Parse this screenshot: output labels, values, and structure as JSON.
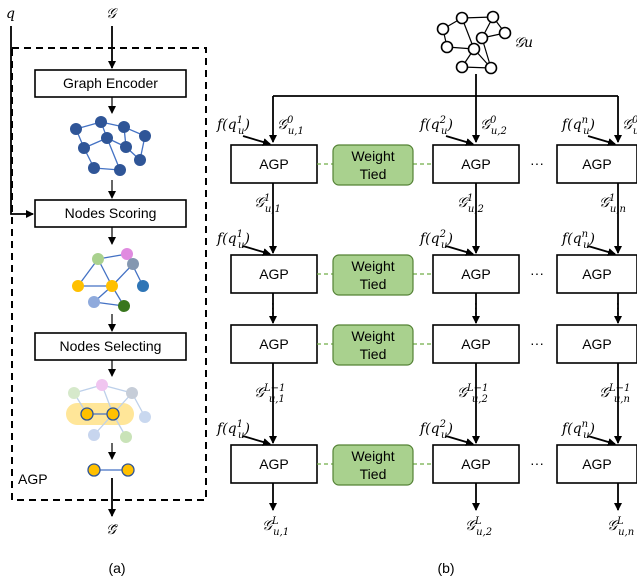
{
  "panel_a": {
    "q_label": "q",
    "graph_label": "𝒢",
    "encoder_label": "Graph Encoder",
    "scoring_label": "Nodes Scoring",
    "selecting_label": "Nodes Selecting",
    "agp_label": "AGP",
    "output_label": "𝒢̃",
    "caption": "(a)"
  },
  "panel_b": {
    "top_graph_label": "𝒢u",
    "agp_box_label": "AGP",
    "tied_line1": "Weight",
    "tied_line2": "Tied",
    "ellipsis_h": "···",
    "ellipsis_v": "⋮",
    "caption": "(b)",
    "inputs": [
      {
        "f": "f(q",
        "sup": "1",
        "u": "u",
        "g0": "𝒢",
        "g0sup": "0",
        "g0sub": "u,1"
      },
      {
        "f": "f(q",
        "sup": "2",
        "u": "u",
        "g0": "𝒢",
        "g0sup": "0",
        "g0sub": "u,2"
      },
      {
        "f": "f(q",
        "sup": "n",
        "u": "u",
        "g0": "𝒢",
        "g0sup": "0",
        "g0sub": "u,n"
      }
    ],
    "layer1_out": [
      {
        "sup": "1",
        "sub": "u,1"
      },
      {
        "sup": "1",
        "sub": "u,2"
      },
      {
        "sup": "1",
        "sub": "u,n"
      }
    ],
    "layerLm1_out": [
      {
        "sup": "L−1",
        "sub": "u,1"
      },
      {
        "sup": "L−1",
        "sub": "u,2"
      },
      {
        "sup": "L−1",
        "sub": "u,n"
      }
    ],
    "final_out": [
      {
        "sup": "L",
        "sub": "u,1"
      },
      {
        "sup": "L",
        "sub": "u,2"
      },
      {
        "sup": "L",
        "sub": "u,n"
      }
    ]
  },
  "colors": {
    "node_blue": "#2f5597",
    "node_green": "#a9d18e",
    "node_pink": "#e08be0",
    "node_gray": "#8497b0",
    "node_orange": "#ffc000",
    "node_light_blue": "#8faadc",
    "node_dark_green": "#38761d",
    "node_mid_blue": "#2e75b6",
    "highlight": "#ffe699",
    "tied_fill": "#a9d18e"
  }
}
